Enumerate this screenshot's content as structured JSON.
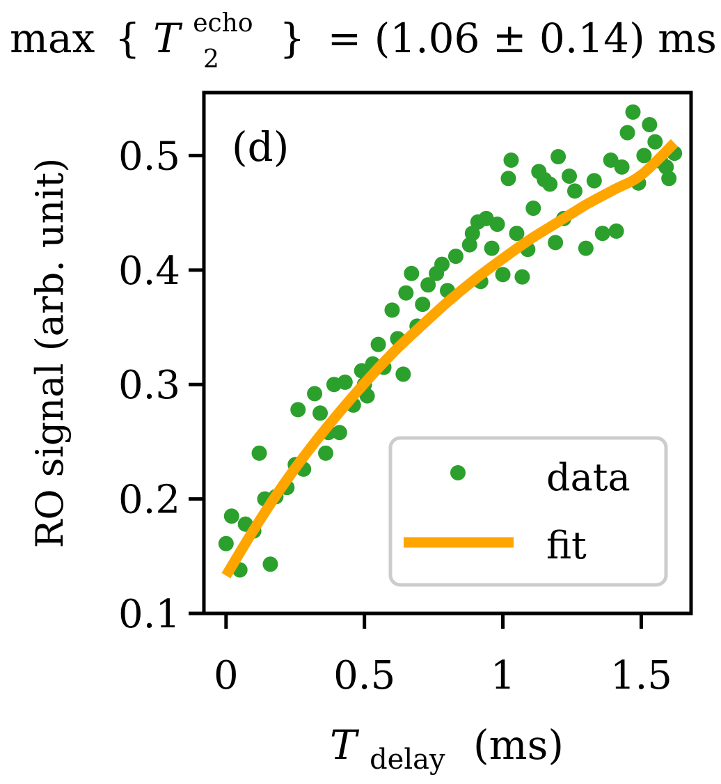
{
  "header": {
    "max": "max",
    "brace_open": "{",
    "symbol": "T",
    "sup": "echo",
    "sub": "2",
    "brace_close": "}",
    "equation": "= (1.06 ± 0.14) ms"
  },
  "chart_data": {
    "type": "scatter",
    "panel_label": "(d)",
    "xlabel_symbol": "T",
    "xlabel_sub": "delay",
    "xlabel_unit": "(ms)",
    "ylabel": "RO signal (arb. unit)",
    "xlim": [
      -0.08,
      1.68
    ],
    "ylim": [
      0.1,
      0.555
    ],
    "xticks": [
      0,
      0.5,
      1,
      1.5
    ],
    "xtick_labels": [
      "0",
      "0.5",
      "1",
      "1.5"
    ],
    "yticks": [
      0.1,
      0.2,
      0.3,
      0.4,
      0.5
    ],
    "ytick_labels": [
      "0.1",
      "0.2",
      "0.3",
      "0.4",
      "0.5"
    ],
    "grid": false,
    "legend": {
      "position": "lower-right",
      "entries": [
        "data",
        "fit"
      ]
    },
    "colors": {
      "data": "#2ca02c",
      "fit": "#ffa500"
    },
    "series": [
      {
        "name": "data",
        "kind": "scatter",
        "points": [
          [
            0.0,
            0.161
          ],
          [
            0.02,
            0.185
          ],
          [
            0.05,
            0.138
          ],
          [
            0.07,
            0.178
          ],
          [
            0.1,
            0.172
          ],
          [
            0.12,
            0.24
          ],
          [
            0.14,
            0.2
          ],
          [
            0.16,
            0.143
          ],
          [
            0.18,
            0.202
          ],
          [
            0.22,
            0.21
          ],
          [
            0.25,
            0.23
          ],
          [
            0.26,
            0.278
          ],
          [
            0.28,
            0.226
          ],
          [
            0.32,
            0.292
          ],
          [
            0.34,
            0.275
          ],
          [
            0.36,
            0.24
          ],
          [
            0.37,
            0.258
          ],
          [
            0.39,
            0.3
          ],
          [
            0.41,
            0.258
          ],
          [
            0.43,
            0.302
          ],
          [
            0.46,
            0.282
          ],
          [
            0.49,
            0.312
          ],
          [
            0.5,
            0.3
          ],
          [
            0.51,
            0.29
          ],
          [
            0.53,
            0.318
          ],
          [
            0.55,
            0.335
          ],
          [
            0.57,
            0.315
          ],
          [
            0.6,
            0.365
          ],
          [
            0.62,
            0.34
          ],
          [
            0.64,
            0.309
          ],
          [
            0.65,
            0.38
          ],
          [
            0.67,
            0.397
          ],
          [
            0.69,
            0.351
          ],
          [
            0.71,
            0.37
          ],
          [
            0.73,
            0.387
          ],
          [
            0.76,
            0.397
          ],
          [
            0.78,
            0.405
          ],
          [
            0.8,
            0.382
          ],
          [
            0.83,
            0.412
          ],
          [
            0.88,
            0.422
          ],
          [
            0.89,
            0.432
          ],
          [
            0.91,
            0.442
          ],
          [
            0.92,
            0.39
          ],
          [
            0.94,
            0.445
          ],
          [
            0.96,
            0.419
          ],
          [
            0.98,
            0.44
          ],
          [
            1.0,
            0.396
          ],
          [
            1.02,
            0.48
          ],
          [
            1.03,
            0.496
          ],
          [
            1.05,
            0.432
          ],
          [
            1.07,
            0.394
          ],
          [
            1.09,
            0.418
          ],
          [
            1.11,
            0.454
          ],
          [
            1.13,
            0.486
          ],
          [
            1.15,
            0.479
          ],
          [
            1.17,
            0.475
          ],
          [
            1.19,
            0.424
          ],
          [
            1.2,
            0.499
          ],
          [
            1.22,
            0.445
          ],
          [
            1.24,
            0.482
          ],
          [
            1.26,
            0.469
          ],
          [
            1.3,
            0.419
          ],
          [
            1.33,
            0.478
          ],
          [
            1.36,
            0.432
          ],
          [
            1.39,
            0.496
          ],
          [
            1.41,
            0.434
          ],
          [
            1.43,
            0.49
          ],
          [
            1.45,
            0.52
          ],
          [
            1.47,
            0.538
          ],
          [
            1.49,
            0.476
          ],
          [
            1.51,
            0.5
          ],
          [
            1.53,
            0.527
          ],
          [
            1.55,
            0.512
          ],
          [
            1.57,
            0.495
          ],
          [
            1.59,
            0.49
          ],
          [
            1.6,
            0.48
          ],
          [
            1.62,
            0.502
          ]
        ]
      },
      {
        "name": "fit",
        "kind": "line",
        "points": [
          [
            0.0,
            0.133
          ],
          [
            0.1,
            0.173
          ],
          [
            0.2,
            0.21
          ],
          [
            0.3,
            0.243
          ],
          [
            0.4,
            0.273
          ],
          [
            0.5,
            0.301
          ],
          [
            0.6,
            0.327
          ],
          [
            0.7,
            0.35
          ],
          [
            0.8,
            0.372
          ],
          [
            0.9,
            0.392
          ],
          [
            1.0,
            0.41
          ],
          [
            1.1,
            0.427
          ],
          [
            1.2,
            0.442
          ],
          [
            1.3,
            0.457
          ],
          [
            1.4,
            0.47
          ],
          [
            1.5,
            0.483
          ],
          [
            1.62,
            0.511
          ]
        ]
      }
    ]
  }
}
